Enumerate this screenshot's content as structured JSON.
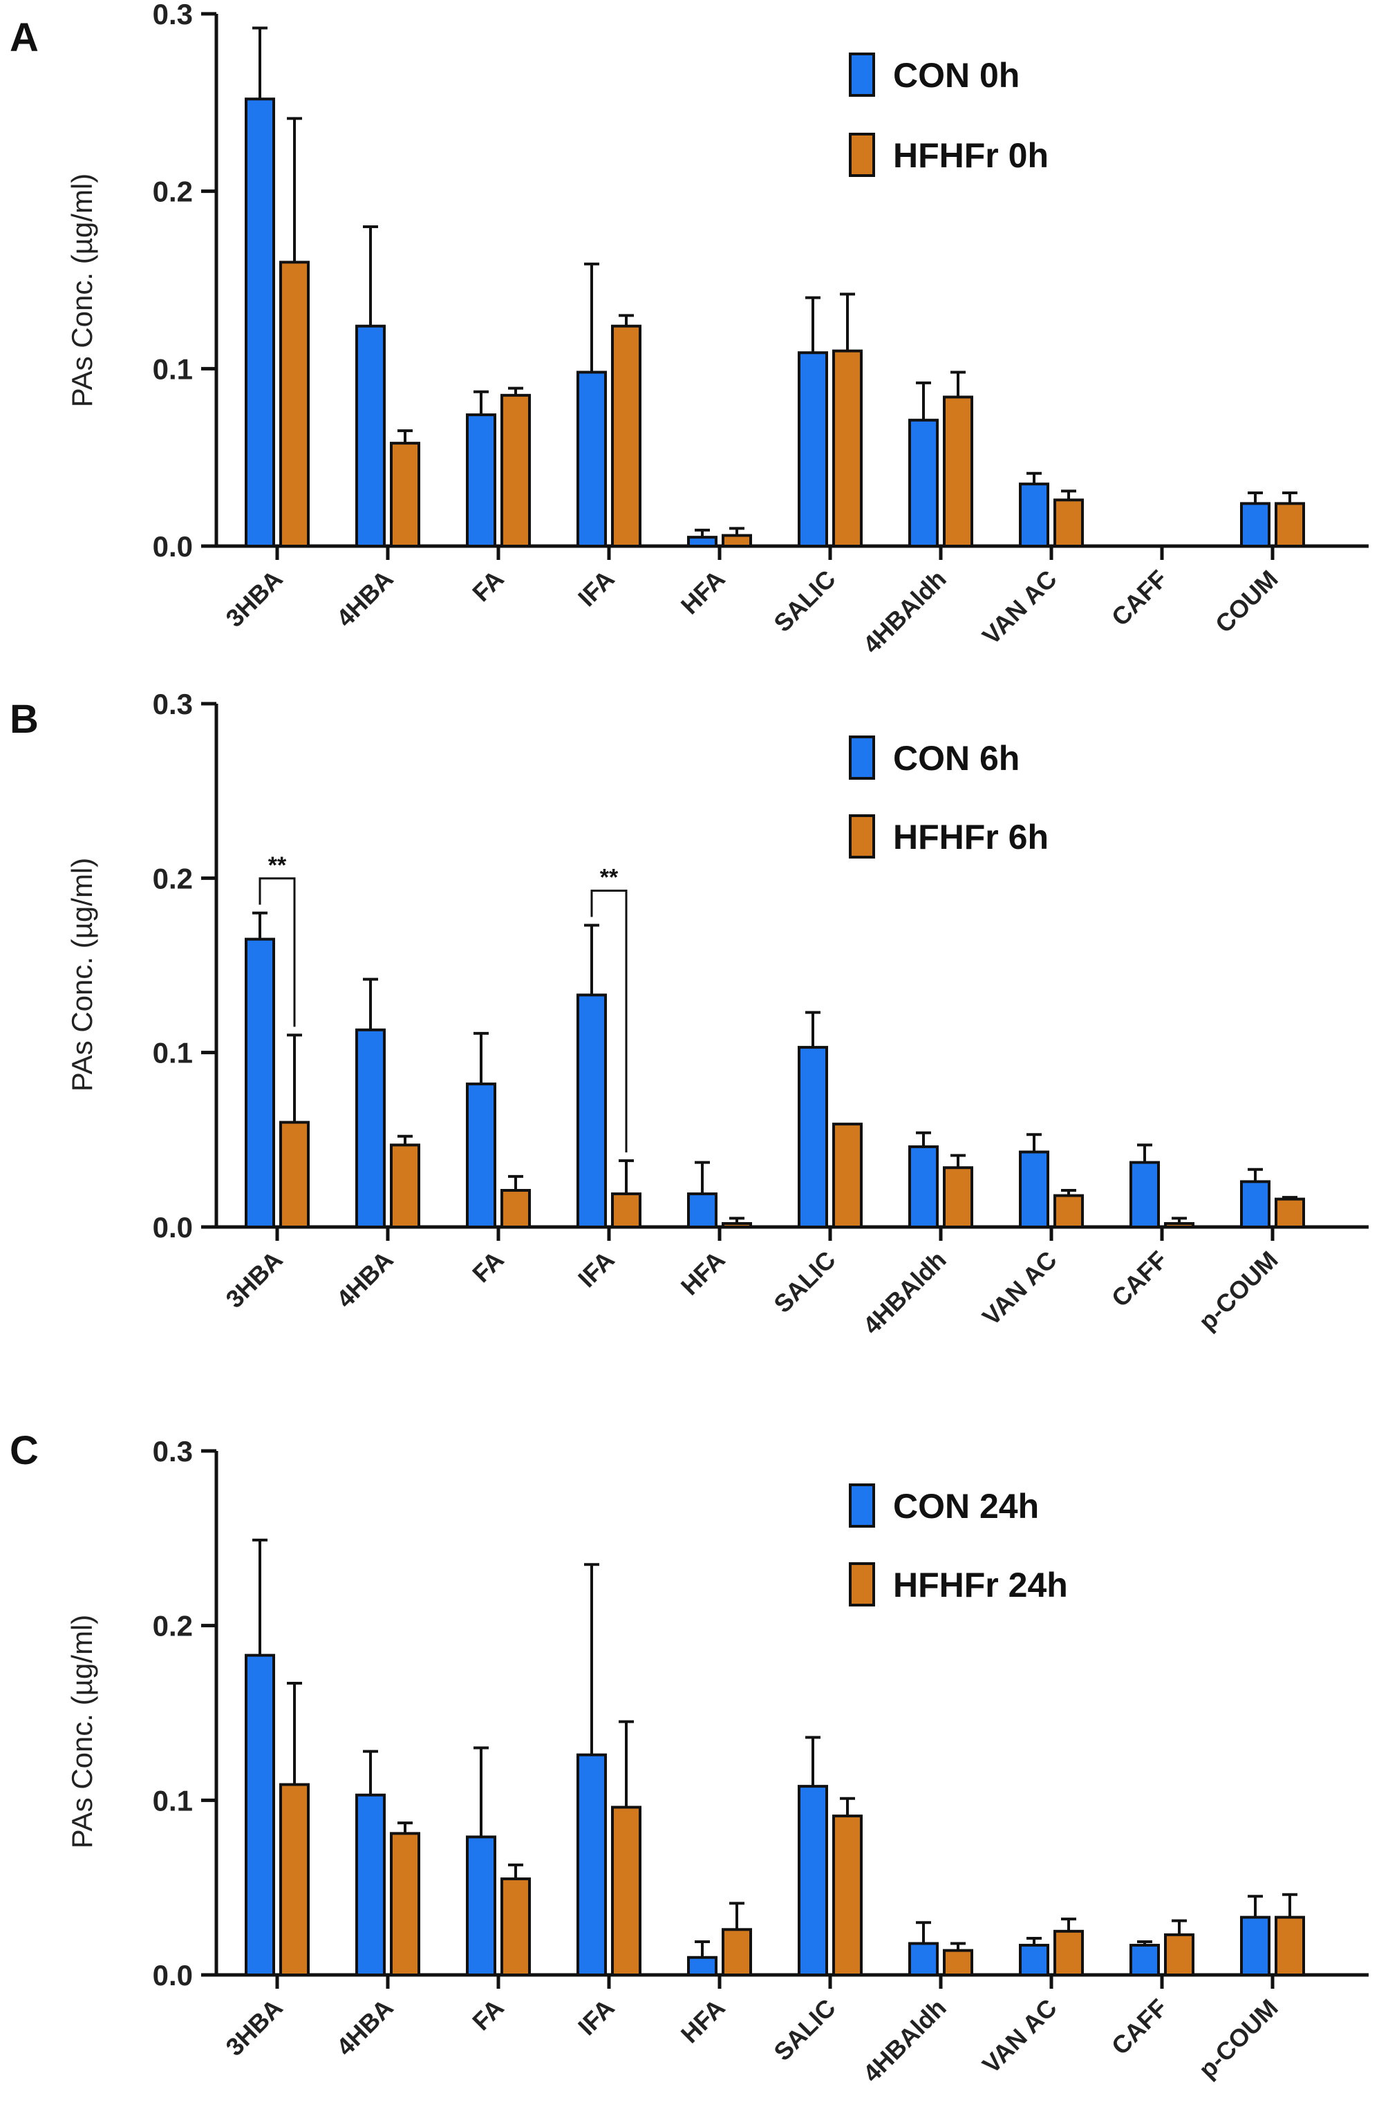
{
  "colors": {
    "con": "#1f77f0",
    "hfhfr": "#d2791e",
    "axis": "#111111"
  },
  "chart_data": [
    {
      "type": "bar",
      "panel": "A",
      "ylabel": "PAs Conc. (µg/ml)",
      "ylim": [
        0,
        0.3
      ],
      "yticks": [
        0,
        0.1,
        0.2,
        0.3
      ],
      "ytick_labels": [
        "0.0",
        "0.1",
        "0.2",
        "0.3"
      ],
      "categories": [
        "3HBA",
        "4HBA",
        "FA",
        "IFA",
        "HFA",
        "SALIC",
        "4HBAldh",
        "VAN AC",
        "CAFF",
        "COUM"
      ],
      "series": [
        {
          "name": "CON  0h",
          "color": "con",
          "values": [
            0.252,
            0.124,
            0.074,
            0.098,
            0.005,
            0.109,
            0.071,
            0.035,
            0,
            0.024
          ],
          "errors": [
            0.04,
            0.056,
            0.013,
            0.061,
            0.004,
            0.031,
            0.021,
            0.006,
            0,
            0.006
          ]
        },
        {
          "name": "HFHFr 0h",
          "color": "hfhfr",
          "values": [
            0.16,
            0.058,
            0.085,
            0.124,
            0.006,
            0.11,
            0.084,
            0.026,
            0,
            0.024
          ],
          "errors": [
            0.081,
            0.007,
            0.004,
            0.006,
            0.004,
            0.032,
            0.014,
            0.005,
            0,
            0.006
          ]
        }
      ],
      "significance": []
    },
    {
      "type": "bar",
      "panel": "B",
      "ylabel": "PAs Conc. (µg/ml)",
      "ylim": [
        0,
        0.3
      ],
      "yticks": [
        0,
        0.1,
        0.2,
        0.3
      ],
      "ytick_labels": [
        "0.0",
        "0.1",
        "0.2",
        "0.3"
      ],
      "categories": [
        "3HBA",
        "4HBA",
        "FA",
        "IFA",
        "HFA",
        "SALIC",
        "4HBAldh",
        "VAN AC",
        "CAFF",
        "p-COUM"
      ],
      "series": [
        {
          "name": "CON 6h",
          "color": "con",
          "values": [
            0.165,
            0.113,
            0.082,
            0.133,
            0.019,
            0.103,
            0.046,
            0.043,
            0.037,
            0.026
          ],
          "errors": [
            0.015,
            0.029,
            0.029,
            0.04,
            0.018,
            0.02,
            0.008,
            0.01,
            0.01,
            0.007
          ]
        },
        {
          "name": "HFHFr 6h",
          "color": "hfhfr",
          "values": [
            0.06,
            0.047,
            0.021,
            0.019,
            0.002,
            0.059,
            0.034,
            0.018,
            0.002,
            0.016
          ],
          "errors": [
            0.05,
            0.005,
            0.008,
            0.019,
            0.003,
            0,
            0.007,
            0.003,
            0.003,
            0.001
          ]
        }
      ],
      "significance": [
        {
          "category": "3HBA",
          "label": "**"
        },
        {
          "category": "IFA",
          "label": "**"
        }
      ]
    },
    {
      "type": "bar",
      "panel": "C",
      "ylabel": "PAs Conc. (µg/ml)",
      "ylim": [
        0,
        0.3
      ],
      "yticks": [
        0,
        0.1,
        0.2,
        0.3
      ],
      "ytick_labels": [
        "0.0",
        "0.1",
        "0.2",
        "0.3"
      ],
      "categories": [
        "3HBA",
        "4HBA",
        "FA",
        "IFA",
        "HFA",
        "SALIC",
        "4HBAldh",
        "VAN AC",
        "CAFF",
        "p-COUM"
      ],
      "series": [
        {
          "name": "CON 24h",
          "color": "con",
          "values": [
            0.183,
            0.103,
            0.079,
            0.126,
            0.01,
            0.108,
            0.018,
            0.017,
            0.017,
            0.033
          ],
          "errors": [
            0.066,
            0.025,
            0.051,
            0.109,
            0.009,
            0.028,
            0.012,
            0.004,
            0.002,
            0.012
          ]
        },
        {
          "name": "HFHFr 24h",
          "color": "hfhfr",
          "values": [
            0.109,
            0.081,
            0.055,
            0.096,
            0.026,
            0.091,
            0.014,
            0.025,
            0.023,
            0.033
          ],
          "errors": [
            0.058,
            0.006,
            0.008,
            0.049,
            0.015,
            0.01,
            0.004,
            0.007,
            0.008,
            0.013
          ]
        }
      ],
      "significance": []
    }
  ]
}
